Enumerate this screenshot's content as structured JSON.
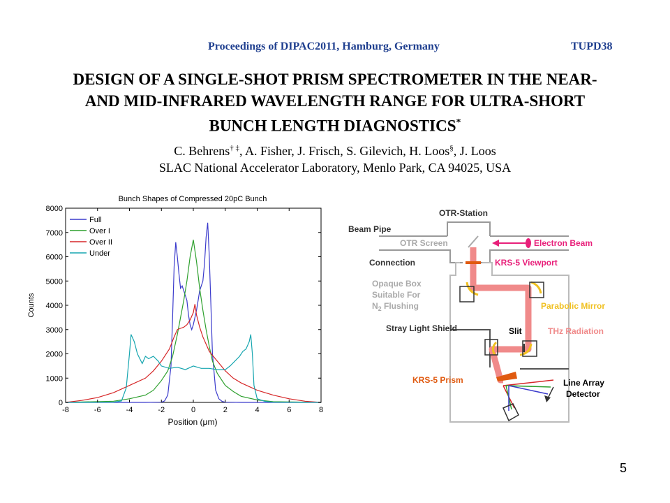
{
  "header": {
    "proceedings": "Proceedings of DIPAC2011, Hamburg, Germany",
    "code": "TUPD38"
  },
  "paper": {
    "title_lines": [
      "DESIGN OF A SINGLE-SHOT PRISM SPECTROMETER IN THE NEAR-",
      "AND MID-INFRARED WAVELENGTH RANGE FOR ULTRA-SHORT",
      "BUNCH LENGTH DIAGNOSTICS"
    ],
    "title_mark": "*",
    "authors": {
      "a1": "C. Behrens",
      "a1_marks": "† ‡",
      "rest1": ", A. Fisher, J. Frisch, S. Gilevich, H. Loos",
      "a2_marks": "§",
      "rest2": ", J. Loos"
    },
    "affiliation": "SLAC National Accelerator Laboratory, Menlo Park, CA 94025, USA"
  },
  "chart_data": {
    "type": "line",
    "title": "Bunch Shapes of Compressed 20pC Bunch",
    "xlabel": "Position (μm)",
    "ylabel": "Counts",
    "xlim": [
      -8,
      8
    ],
    "ylim": [
      0,
      8000
    ],
    "xticks": [
      -8,
      -6,
      -4,
      -2,
      0,
      2,
      4,
      6,
      8
    ],
    "yticks": [
      0,
      1000,
      2000,
      3000,
      4000,
      5000,
      6000,
      7000,
      8000
    ],
    "legend_position": "top-left",
    "series": [
      {
        "name": "Full",
        "color": "#3b3bcc",
        "x": [
          -8,
          -3,
          -2,
          -1.8,
          -1.6,
          -1.4,
          -1.3,
          -1.2,
          -1.1,
          -1.0,
          -0.9,
          -0.8,
          -0.7,
          -0.6,
          -0.5,
          -0.4,
          -0.3,
          -0.2,
          -0.1,
          0,
          0.1,
          0.2,
          0.3,
          0.4,
          0.5,
          0.6,
          0.7,
          0.8,
          0.9,
          1.0,
          1.1,
          1.2,
          1.4,
          1.6,
          1.8,
          2,
          3,
          8
        ],
        "values": [
          0,
          0,
          10,
          60,
          300,
          1500,
          3500,
          5600,
          6600,
          6000,
          5300,
          4700,
          4800,
          4600,
          4400,
          4200,
          3600,
          3200,
          3000,
          3200,
          3500,
          3800,
          4200,
          4600,
          4800,
          5000,
          5700,
          6800,
          7400,
          6000,
          4000,
          2000,
          500,
          150,
          40,
          10,
          0,
          0
        ]
      },
      {
        "name": "Over I",
        "color": "#2ea02e",
        "x": [
          -8,
          -5,
          -4,
          -3,
          -2.5,
          -2,
          -1.6,
          -1.3,
          -1.0,
          -0.8,
          -0.6,
          -0.4,
          -0.2,
          0,
          0.2,
          0.4,
          0.6,
          0.8,
          1.0,
          1.2,
          1.5,
          2,
          2.5,
          3,
          4,
          5,
          8
        ],
        "values": [
          0,
          50,
          150,
          300,
          500,
          900,
          1300,
          1900,
          2800,
          3500,
          4200,
          5000,
          6000,
          6700,
          5800,
          4700,
          3800,
          3000,
          2300,
          1700,
          1200,
          700,
          450,
          250,
          100,
          30,
          0
        ]
      },
      {
        "name": "Over II",
        "color": "#d62728",
        "x": [
          -8,
          -7,
          -6,
          -5,
          -4,
          -3,
          -2.5,
          -2,
          -1.5,
          -1.2,
          -1.0,
          -0.8,
          -0.6,
          -0.4,
          -0.2,
          0,
          0.1,
          0.2,
          0.4,
          0.6,
          0.8,
          1.0,
          1.5,
          2,
          2.5,
          3,
          4,
          5,
          6,
          7,
          8
        ],
        "values": [
          0,
          80,
          200,
          400,
          700,
          1000,
          1300,
          1700,
          2200,
          2700,
          3000,
          3050,
          3100,
          3200,
          3400,
          3700,
          4050,
          3600,
          3100,
          2700,
          2400,
          2100,
          1700,
          1300,
          1000,
          800,
          500,
          300,
          150,
          50,
          0
        ]
      },
      {
        "name": "Under",
        "color": "#17a6b0",
        "x": [
          -8,
          -5,
          -4.5,
          -4.2,
          -4.0,
          -3.9,
          -3.7,
          -3.5,
          -3.2,
          -3.0,
          -2.8,
          -2.5,
          -2.2,
          -2.0,
          -1.5,
          -1.0,
          -0.5,
          0,
          0.5,
          1.0,
          1.5,
          2.0,
          2.3,
          2.6,
          2.9,
          3.1,
          3.3,
          3.5,
          3.6,
          3.7,
          3.8,
          4.0,
          4.5,
          5,
          8
        ],
        "values": [
          0,
          10,
          60,
          600,
          2000,
          2800,
          2500,
          2000,
          1600,
          1900,
          1800,
          1900,
          1700,
          1500,
          1400,
          1450,
          1350,
          1500,
          1400,
          1400,
          1350,
          1350,
          1500,
          1700,
          1900,
          2100,
          2200,
          2500,
          2800,
          2000,
          700,
          150,
          40,
          10,
          0
        ]
      }
    ]
  },
  "diagram": {
    "labels": {
      "otr_station": "OTR-Station",
      "beam_pipe": "Beam Pipe",
      "otr_screen": "OTR Screen",
      "electron_beam": "Electron Beam",
      "connection": "Connection",
      "krs5_viewport": "KRS-5 Viewport",
      "opaque_box_1": "Opaque Box",
      "opaque_box_2": "Suitable For",
      "opaque_box_3": "N",
      "opaque_box_sub": "2",
      "opaque_box_4": " Flushing",
      "parabolic_mirror": "Parabolic Mirror",
      "stray_light_shield": "Stray Light Shield",
      "slit": "Slit",
      "thz_radiation": "THz Radiation",
      "krs5_prism": "KRS-5 Prism",
      "detector_1": "Line Array",
      "detector_2": "Detector"
    },
    "colors": {
      "beam": "#f08a8a",
      "electron": "#e8207a",
      "mirror": "#f0c020",
      "prism": "#e05a10",
      "wall": "#999999",
      "dark_text": "#333333",
      "gray_text": "#aaaaaa"
    }
  },
  "page_number": "5"
}
